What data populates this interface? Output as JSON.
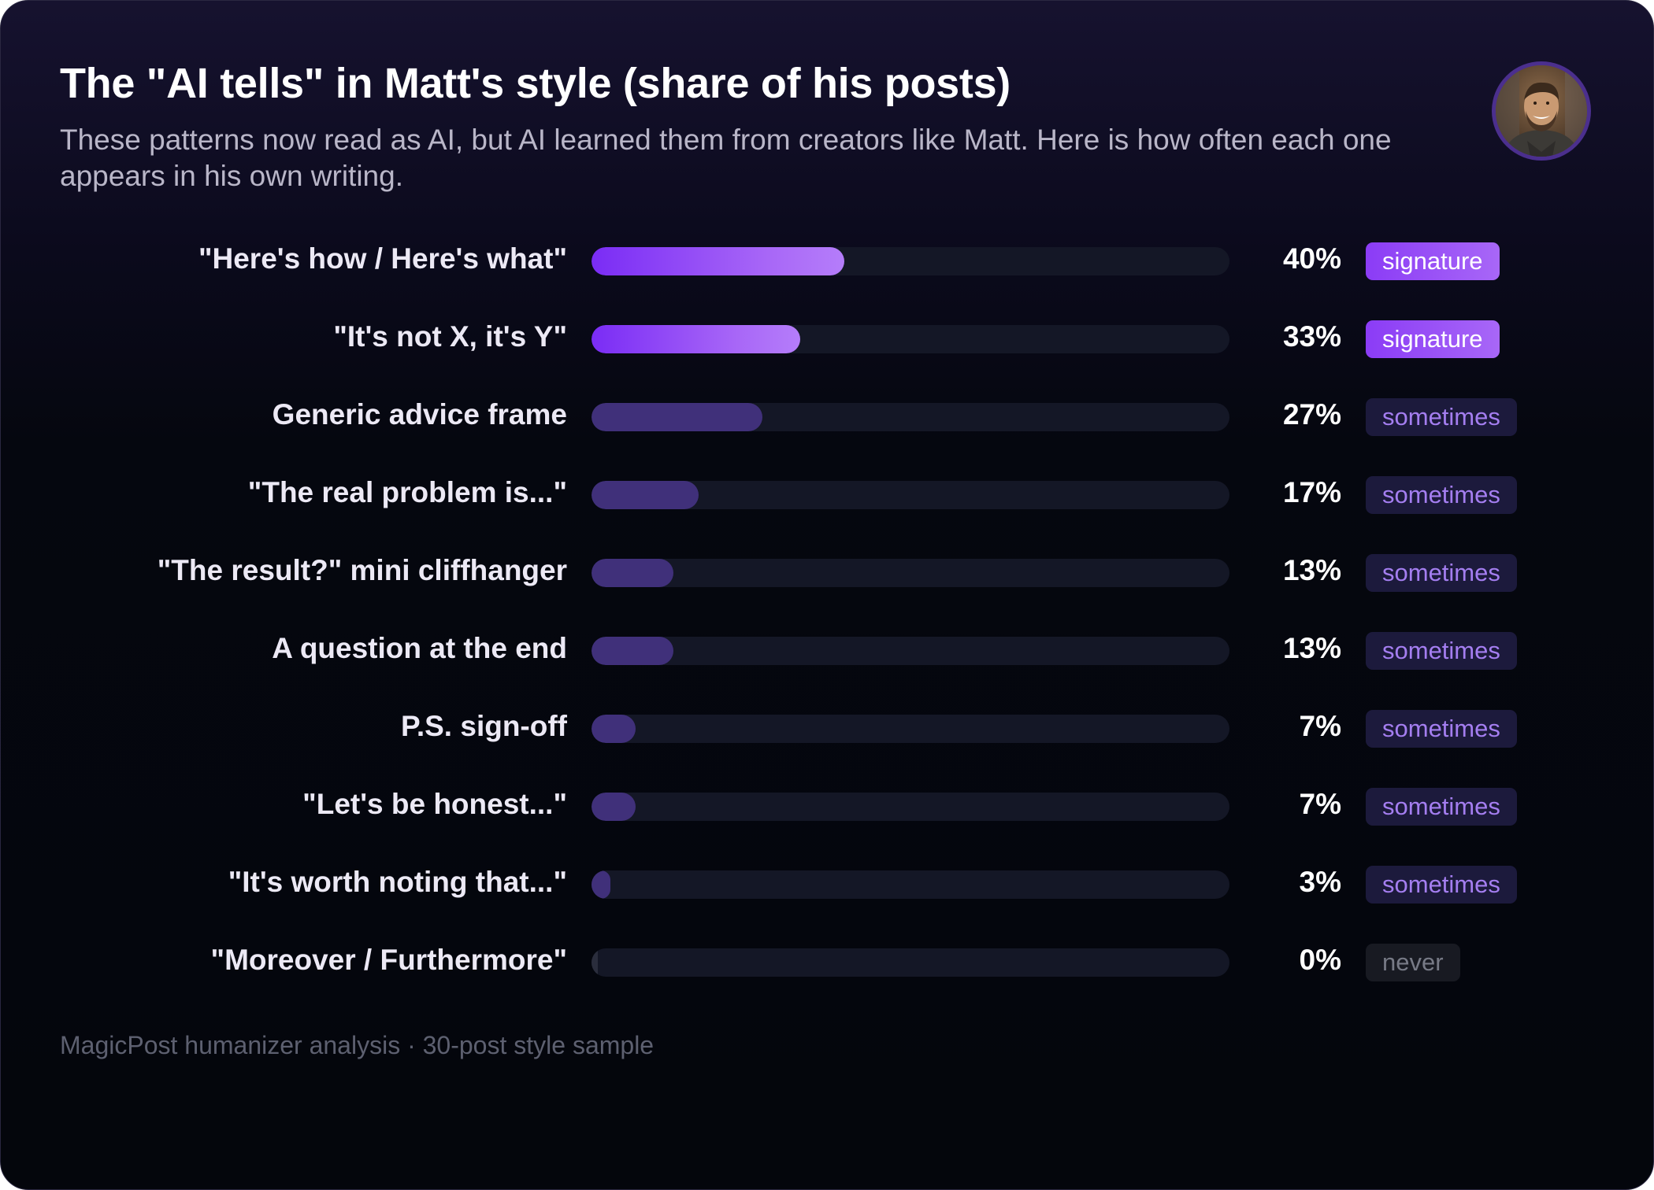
{
  "header": {
    "title": "The \"AI tells\" in Matt's style (share of his posts)",
    "subtitle": "These patterns now read as AI, but AI learned them from creators like Matt. Here is how often each one appears in his own writing."
  },
  "avatar": {
    "icon": "person-avatar-photo"
  },
  "chart_data": {
    "type": "bar",
    "orientation": "horizontal",
    "ylim": [
      0,
      100
    ],
    "categories": [
      "\"Here's how / Here's what\"",
      "\"It's not X, it's Y\"",
      "Generic advice frame",
      "\"The real problem is...\"",
      "\"The result?\" mini cliffhanger",
      "A question at the end",
      "P.S. sign-off",
      "\"Let's be honest...\"",
      "\"It's worth noting that...\"",
      "\"Moreover / Furthermore\""
    ],
    "values": [
      40,
      33,
      27,
      17,
      13,
      13,
      7,
      7,
      3,
      0
    ],
    "value_labels": [
      "40%",
      "33%",
      "27%",
      "17%",
      "13%",
      "13%",
      "7%",
      "7%",
      "3%",
      "0%"
    ],
    "tags": [
      "signature",
      "signature",
      "sometimes",
      "sometimes",
      "sometimes",
      "sometimes",
      "sometimes",
      "sometimes",
      "sometimes",
      "never"
    ],
    "colors": {
      "signature": "#a867f7",
      "sometimes": "#40307a",
      "never": "#2a2d3c",
      "track": "#141726"
    }
  },
  "footer": {
    "source": "MagicPost humanizer analysis · 30-post style sample"
  }
}
